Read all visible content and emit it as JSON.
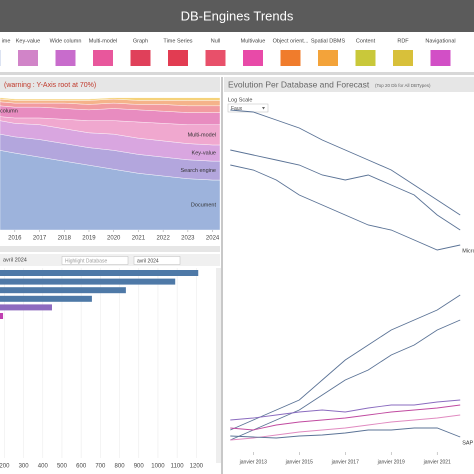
{
  "header": {
    "title": "DB-Engines Trends"
  },
  "legend": [
    {
      "label": "ime",
      "color": "#b9c7e6"
    },
    {
      "label": "Key-value",
      "color": "#d184c8"
    },
    {
      "label": "Wide column",
      "color": "#c86ccc"
    },
    {
      "label": "Multi-model",
      "color": "#e8579c"
    },
    {
      "label": "Graph",
      "color": "#e0405a"
    },
    {
      "label": "Time Series",
      "color": "#e23c52"
    },
    {
      "label": "Null",
      "color": "#e8506a"
    },
    {
      "label": "Multivalue",
      "color": "#e84aa8"
    },
    {
      "label": "Object orient...",
      "color": "#f07c2c"
    },
    {
      "label": "Spatial DBMS",
      "color": "#f3a33a"
    },
    {
      "label": "Content",
      "color": "#c9c83a"
    },
    {
      "label": "RDF",
      "color": "#d8c03a"
    },
    {
      "label": "Navigational",
      "color": "#d24fc6"
    }
  ],
  "stack_panel": {
    "warning": "(warning : Y-Axis root at 70%)",
    "chart_data": {
      "type": "stacked-area",
      "x": [
        2015.4,
        2016,
        2017,
        2018,
        2019,
        2020,
        2021,
        2022,
        2023,
        2024,
        2024.3
      ],
      "xlim": [
        2015.4,
        2024.3
      ],
      "xticks": [
        2016,
        2017,
        2018,
        2019,
        2020,
        2021,
        2022,
        2023,
        2024
      ],
      "ylim": [
        0,
        100
      ],
      "series": [
        {
          "name": "Document",
          "color": "#9db3dc",
          "values": [
            59,
            57,
            54,
            51,
            48,
            45,
            42,
            40,
            38,
            37,
            37
          ]
        },
        {
          "name": "Search engine",
          "color": "#b3a6dd",
          "values": [
            12,
            12,
            13,
            13,
            13,
            14,
            14,
            14,
            14,
            14,
            14
          ]
        },
        {
          "name": "Key-value",
          "color": "#d9a6e0",
          "values": [
            10,
            10,
            11,
            11,
            11,
            12,
            12,
            12,
            12,
            12,
            12
          ]
        },
        {
          "name": "Multi-model",
          "color": "#f0a8cf",
          "values": [
            3,
            4,
            5,
            7,
            9,
            10,
            12,
            13,
            14,
            15,
            15
          ]
        },
        {
          "name": "Wide column",
          "color": "#e88cc0",
          "values": [
            8,
            8,
            8,
            8,
            8,
            9,
            9,
            9,
            9,
            9,
            9
          ]
        },
        {
          "color": "#f29ba0",
          "values": [
            3,
            3,
            3,
            4,
            4,
            4,
            4,
            5,
            5,
            5,
            5
          ]
        },
        {
          "color": "#f5b38a",
          "values": [
            2,
            2,
            2,
            2,
            3,
            3,
            3,
            3,
            4,
            4,
            4
          ]
        },
        {
          "color": "#f5d27a",
          "values": [
            1,
            1,
            1,
            1,
            1,
            1,
            2,
            2,
            2,
            2,
            2
          ]
        }
      ]
    }
  },
  "bar_panel": {
    "month_label": "avril 2024",
    "search_placeholder": "Highlight Database",
    "month_select": "avril 2024",
    "chart_data": {
      "type": "hbar",
      "values": [
        1210,
        1090,
        833,
        656,
        448,
        193
      ],
      "colors": [
        "#4e79a7",
        "#4e79a7",
        "#4e79a7",
        "#4e79a7",
        "#8e6bbf",
        "#c040b0"
      ],
      "xlim": [
        0,
        1240
      ],
      "xticks": [
        200,
        300,
        400,
        500,
        600,
        700,
        800,
        900,
        1000,
        1100,
        1200
      ],
      "grid": true
    }
  },
  "line_panel": {
    "title": "Evolution Per Database and Forecast",
    "subtitle": "(Top 20 Db for All DBTypes)",
    "log_scale_label": "Log Scale",
    "log_scale_value": "Faux",
    "chart_data": {
      "type": "line",
      "x": [
        2012,
        2013,
        2014,
        2015,
        2016,
        2017,
        2018,
        2019,
        2020,
        2021,
        2022
      ],
      "xlim": [
        2011.9,
        2022.6
      ],
      "xticks": [
        {
          "value": 2013,
          "label": "janvier 2013"
        },
        {
          "value": 2015,
          "label": "janvier 2015"
        },
        {
          "value": 2017,
          "label": "janvier 2017"
        },
        {
          "value": 2019,
          "label": "janvier 2019"
        },
        {
          "value": 2021,
          "label": "janvier 2021"
        }
      ],
      "ylim": [
        0,
        350
      ],
      "series": [
        {
          "color": "#5b7396",
          "values": [
            340,
            338,
            330,
            322,
            310,
            300,
            290,
            280,
            265,
            250,
            235
          ]
        },
        {
          "color": "#5b7396",
          "values": [
            300,
            295,
            290,
            285,
            275,
            270,
            275,
            265,
            255,
            235,
            220
          ]
        },
        {
          "color": "#5b7396",
          "values": [
            285,
            280,
            270,
            255,
            245,
            235,
            225,
            220,
            210,
            200,
            205
          ],
          "end_label": "Micro"
        },
        {
          "color": "#5b7396",
          "values": [
            20,
            30,
            40,
            50,
            70,
            90,
            105,
            120,
            130,
            140,
            155
          ]
        },
        {
          "color": "#5b7396",
          "values": [
            10,
            20,
            30,
            40,
            55,
            70,
            80,
            95,
            105,
            120,
            130
          ]
        },
        {
          "color": "#8a6bbf",
          "values": [
            30,
            32,
            35,
            38,
            40,
            38,
            42,
            45,
            45,
            48,
            50
          ]
        },
        {
          "color": "#c04aa0",
          "values": [
            22,
            20,
            25,
            28,
            30,
            32,
            35,
            38,
            40,
            42,
            45
          ]
        },
        {
          "color": "#e08ac0",
          "values": [
            10,
            12,
            15,
            18,
            20,
            22,
            25,
            28,
            30,
            32,
            35
          ]
        },
        {
          "color": "#5b7396",
          "values": [
            14,
            13,
            12,
            14,
            15,
            17,
            20,
            20,
            22,
            22,
            13
          ],
          "end_label": "SAP A"
        }
      ]
    }
  }
}
